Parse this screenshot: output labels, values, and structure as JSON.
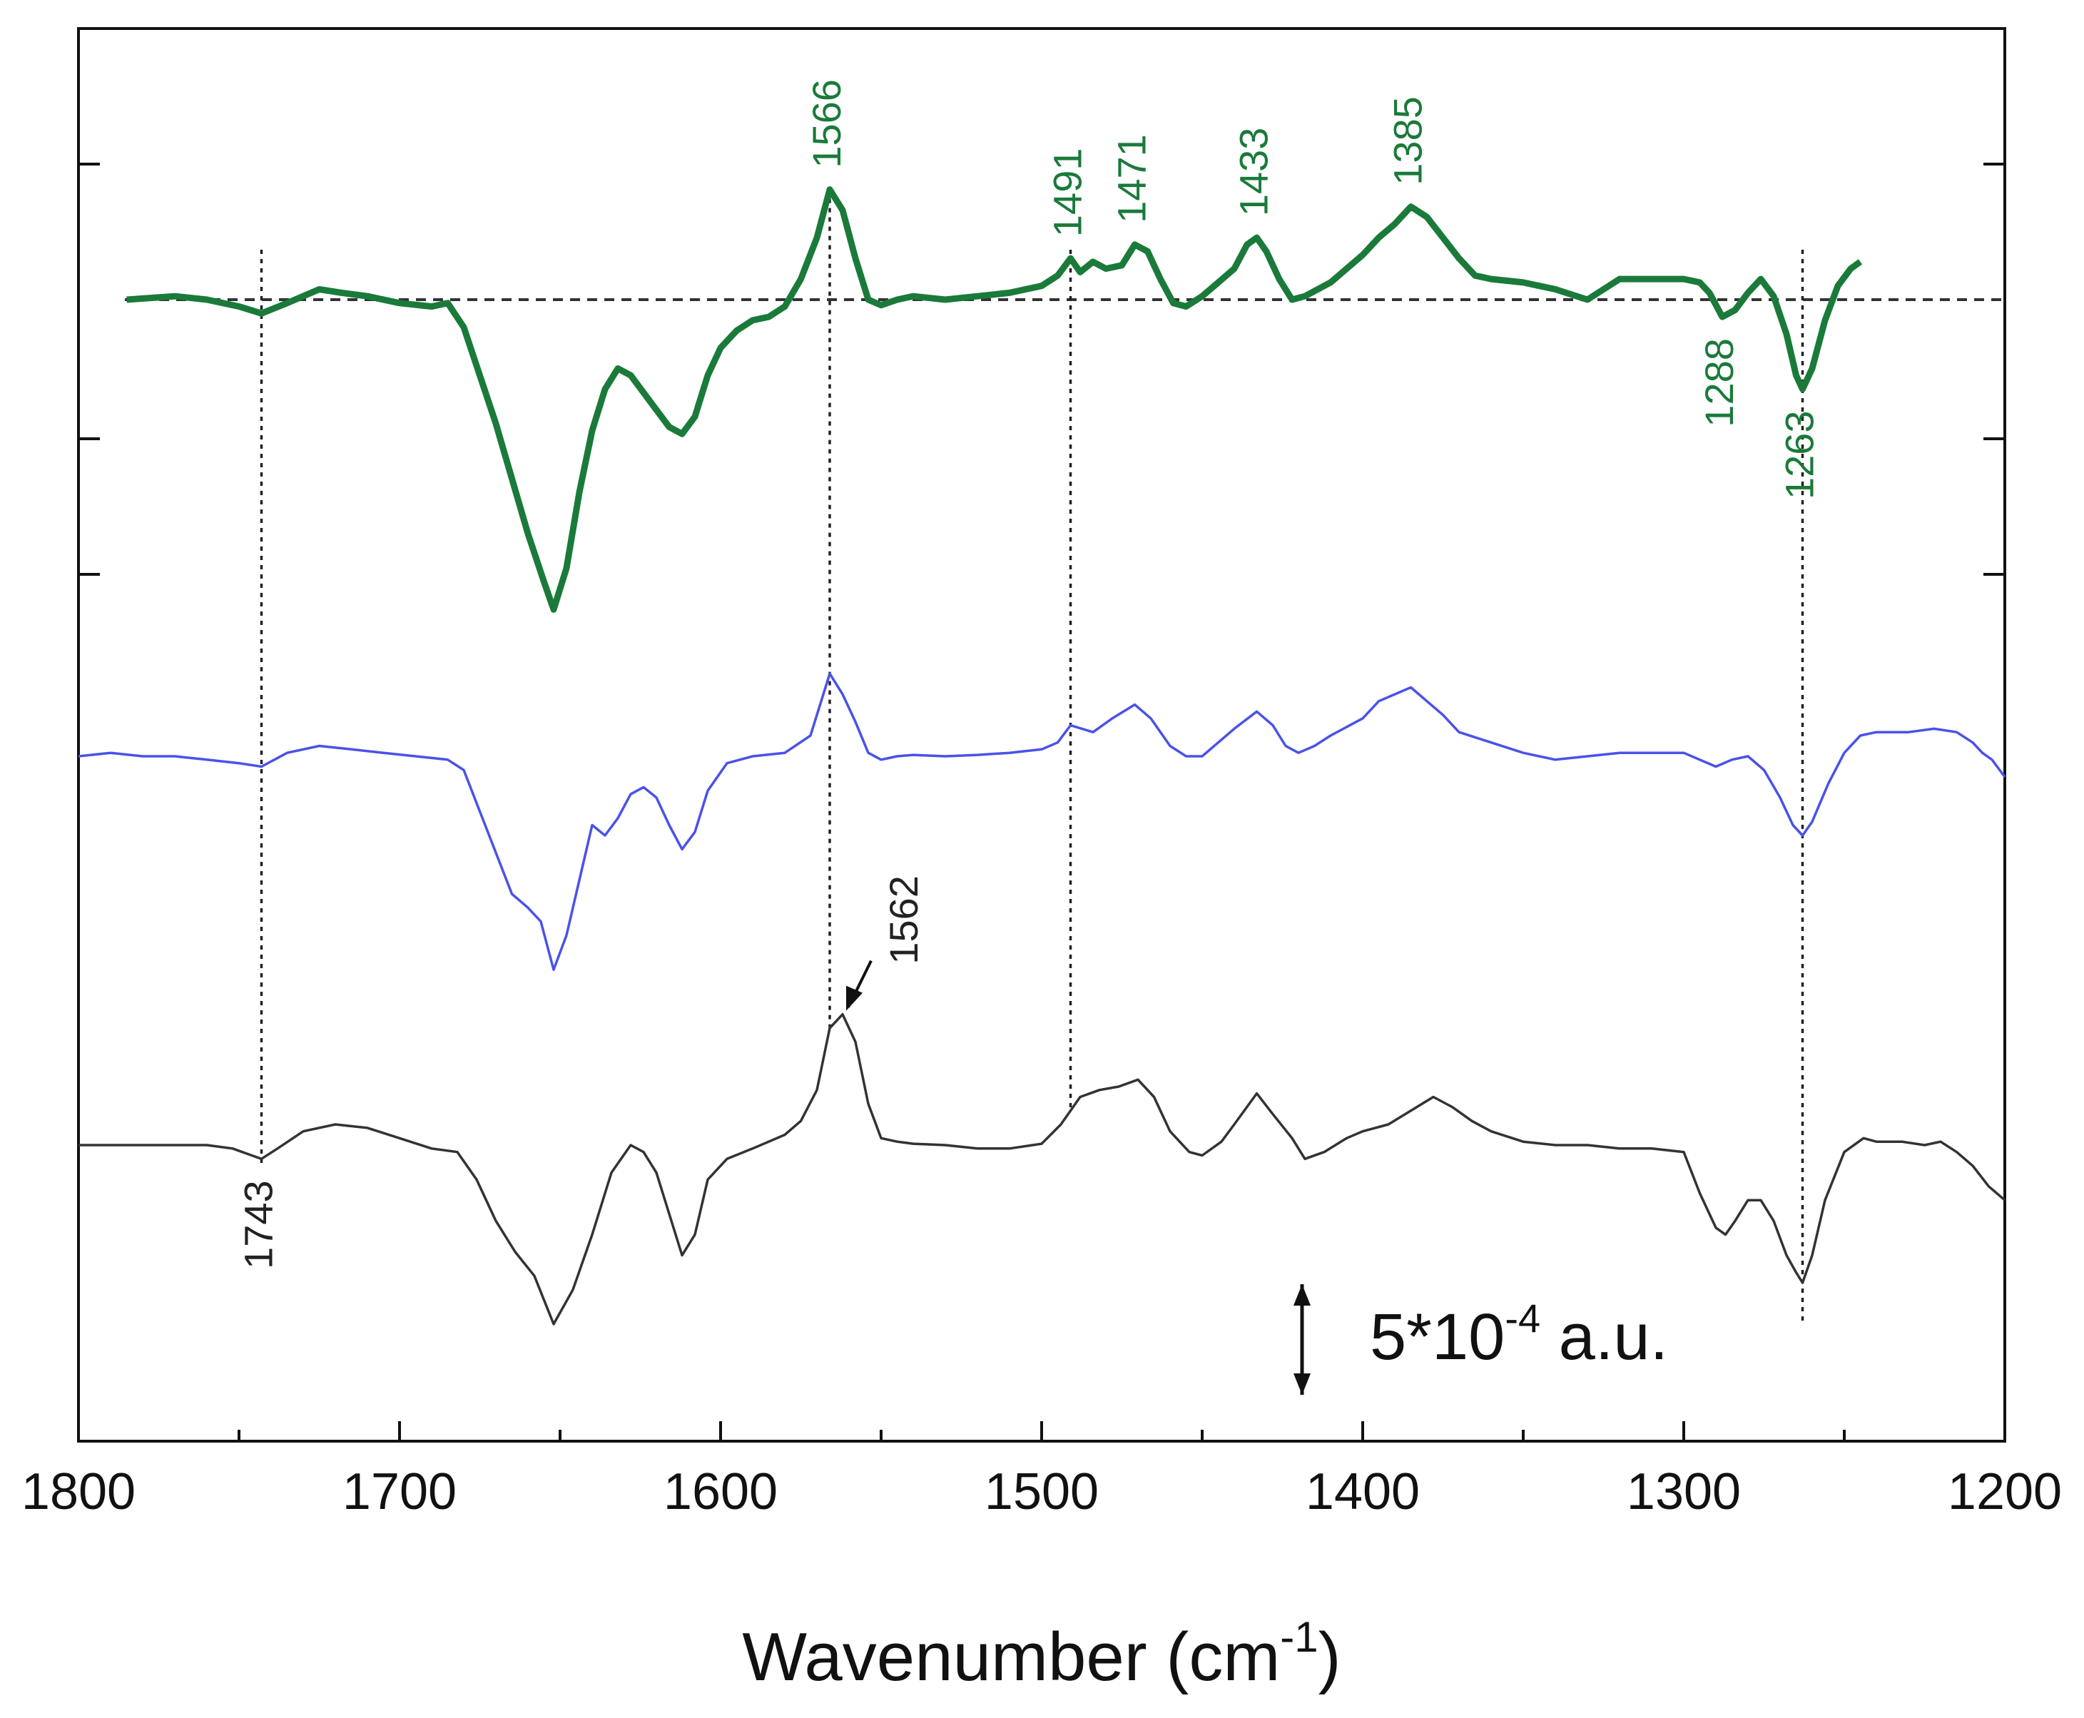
{
  "chart_data": {
    "type": "line",
    "title": "",
    "xlabel": "Wavenumber (cm",
    "xlabel_sup": "-1",
    "xlabel_tail": ")",
    "ylabel": "",
    "xlim": [
      1800,
      1200
    ],
    "x_reversed": true,
    "x_ticks": [
      1800,
      1700,
      1600,
      1500,
      1400,
      1300,
      1200
    ],
    "x_tick_labels": [
      "1800",
      "1700",
      "1600",
      "1500",
      "1400",
      "1300",
      "1200"
    ],
    "scale_bar": {
      "text": "5*10",
      "sup": "-4",
      "tail": " a.u.",
      "units_span": 0.0005
    },
    "series": [
      {
        "name": "top (green)",
        "color": "#1a7a3a",
        "baseline": 1.0,
        "x": [
          1785,
          1770,
          1760,
          1750,
          1743,
          1735,
          1725,
          1718,
          1710,
          1700,
          1690,
          1685,
          1680,
          1675,
          1670,
          1665,
          1660,
          1655,
          1652,
          1648,
          1644,
          1640,
          1636,
          1632,
          1628,
          1624,
          1620,
          1616,
          1612,
          1608,
          1604,
          1600,
          1595,
          1590,
          1585,
          1580,
          1575,
          1570,
          1566,
          1562,
          1558,
          1554,
          1550,
          1545,
          1540,
          1530,
          1520,
          1510,
          1500,
          1495,
          1491,
          1488,
          1484,
          1480,
          1475,
          1471,
          1467,
          1463,
          1459,
          1455,
          1450,
          1445,
          1440,
          1436,
          1433,
          1430,
          1426,
          1422,
          1418,
          1410,
          1400,
          1395,
          1390,
          1385,
          1380,
          1375,
          1370,
          1365,
          1360,
          1350,
          1340,
          1330,
          1320,
          1310,
          1300,
          1295,
          1292,
          1288,
          1284,
          1280,
          1276,
          1272,
          1268,
          1265,
          1263,
          1260,
          1256,
          1252,
          1248,
          1245
        ],
        "y": [
          0.0,
          0.05,
          0.0,
          -0.1,
          -0.2,
          -0.05,
          0.15,
          0.1,
          0.05,
          -0.05,
          -0.1,
          -0.05,
          -0.4,
          -1.1,
          -1.8,
          -2.6,
          -3.4,
          -4.1,
          -4.5,
          -3.9,
          -2.8,
          -1.9,
          -1.3,
          -1.0,
          -1.1,
          -1.35,
          -1.6,
          -1.85,
          -1.95,
          -1.7,
          -1.1,
          -0.7,
          -0.45,
          -0.3,
          -0.25,
          -0.1,
          0.3,
          0.9,
          1.6,
          1.3,
          0.6,
          0.0,
          -0.08,
          0.0,
          0.05,
          0.0,
          0.05,
          0.1,
          0.2,
          0.35,
          0.6,
          0.4,
          0.55,
          0.45,
          0.5,
          0.8,
          0.7,
          0.3,
          -0.05,
          -0.1,
          0.05,
          0.25,
          0.45,
          0.8,
          0.9,
          0.7,
          0.3,
          0.0,
          0.05,
          0.25,
          0.65,
          0.9,
          1.1,
          1.35,
          1.2,
          0.9,
          0.6,
          0.35,
          0.3,
          0.25,
          0.15,
          0.0,
          0.3,
          0.3,
          0.3,
          0.25,
          0.1,
          -0.25,
          -0.15,
          0.1,
          0.3,
          0.05,
          -0.5,
          -1.1,
          -1.3,
          -1.0,
          -0.3,
          0.2,
          0.45,
          0.55
        ]
      },
      {
        "name": "middle (blue)",
        "color": "#4a52e8",
        "baseline": 0.0,
        "x": [
          1800,
          1790,
          1780,
          1770,
          1760,
          1750,
          1743,
          1735,
          1725,
          1715,
          1705,
          1695,
          1685,
          1680,
          1675,
          1670,
          1665,
          1660,
          1656,
          1652,
          1648,
          1644,
          1640,
          1636,
          1632,
          1628,
          1624,
          1620,
          1616,
          1612,
          1608,
          1604,
          1598,
          1590,
          1580,
          1572,
          1566,
          1562,
          1558,
          1554,
          1550,
          1545,
          1540,
          1530,
          1520,
          1510,
          1500,
          1495,
          1491,
          1484,
          1478,
          1471,
          1466,
          1460,
          1455,
          1450,
          1445,
          1440,
          1433,
          1428,
          1424,
          1420,
          1415,
          1410,
          1400,
          1395,
          1390,
          1385,
          1380,
          1375,
          1370,
          1360,
          1350,
          1340,
          1320,
          1300,
          1290,
          1285,
          1280,
          1275,
          1270,
          1266,
          1263,
          1260,
          1255,
          1250,
          1245,
          1240,
          1230,
          1222,
          1215,
          1210,
          1207,
          1204,
          1200
        ],
        "y": [
          0.0,
          0.05,
          0.0,
          0.0,
          -0.05,
          -0.1,
          -0.15,
          0.05,
          0.15,
          0.1,
          0.05,
          0.0,
          -0.05,
          -0.2,
          -0.8,
          -1.4,
          -2.0,
          -2.2,
          -2.4,
          -3.1,
          -2.6,
          -1.8,
          -1.0,
          -1.15,
          -0.9,
          -0.55,
          -0.45,
          -0.6,
          -1.0,
          -1.35,
          -1.1,
          -0.5,
          -0.1,
          0.0,
          0.05,
          0.3,
          1.2,
          0.9,
          0.5,
          0.05,
          -0.05,
          0.0,
          0.02,
          0.0,
          0.02,
          0.05,
          0.1,
          0.2,
          0.45,
          0.35,
          0.55,
          0.75,
          0.55,
          0.15,
          0.0,
          0.0,
          0.2,
          0.4,
          0.65,
          0.45,
          0.15,
          0.05,
          0.15,
          0.3,
          0.55,
          0.8,
          0.9,
          1.0,
          0.8,
          0.6,
          0.35,
          0.2,
          0.05,
          -0.05,
          0.05,
          0.05,
          -0.15,
          -0.05,
          0.0,
          -0.2,
          -0.6,
          -1.0,
          -1.15,
          -0.95,
          -0.4,
          0.05,
          0.3,
          0.35,
          0.35,
          0.4,
          0.35,
          0.2,
          0.05,
          -0.05,
          -0.3
        ]
      },
      {
        "name": "bottom (black)",
        "color": "#333333",
        "baseline": -1.0,
        "x": [
          1800,
          1780,
          1760,
          1752,
          1746,
          1743,
          1738,
          1730,
          1720,
          1710,
          1700,
          1690,
          1682,
          1676,
          1670,
          1664,
          1658,
          1652,
          1646,
          1640,
          1634,
          1628,
          1624,
          1620,
          1616,
          1612,
          1608,
          1604,
          1598,
          1590,
          1580,
          1575,
          1570,
          1566,
          1562,
          1558,
          1554,
          1550,
          1545,
          1540,
          1530,
          1520,
          1510,
          1500,
          1494,
          1488,
          1482,
          1476,
          1470,
          1465,
          1460,
          1454,
          1450,
          1444,
          1440,
          1433,
          1428,
          1422,
          1418,
          1412,
          1405,
          1400,
          1392,
          1385,
          1378,
          1372,
          1366,
          1360,
          1350,
          1340,
          1330,
          1320,
          1310,
          1300,
          1295,
          1290,
          1287,
          1284,
          1280,
          1276,
          1272,
          1268,
          1265,
          1263,
          1260,
          1256,
          1250,
          1244,
          1240,
          1232,
          1225,
          1220,
          1215,
          1210,
          1205,
          1200
        ],
        "y": [
          0.0,
          0.0,
          0.0,
          -0.05,
          -0.15,
          -0.2,
          -0.05,
          0.2,
          0.3,
          0.25,
          0.1,
          -0.05,
          -0.1,
          -0.5,
          -1.1,
          -1.55,
          -1.9,
          -2.6,
          -2.1,
          -1.3,
          -0.4,
          0.0,
          -0.1,
          -0.4,
          -1.0,
          -1.6,
          -1.3,
          -0.5,
          -0.2,
          -0.05,
          0.15,
          0.35,
          0.8,
          1.7,
          1.9,
          1.5,
          0.6,
          0.1,
          0.05,
          0.02,
          0.0,
          -0.05,
          -0.05,
          0.02,
          0.3,
          0.7,
          0.8,
          0.85,
          0.95,
          0.7,
          0.2,
          -0.1,
          -0.15,
          0.05,
          0.3,
          0.75,
          0.45,
          0.1,
          -0.2,
          -0.1,
          0.1,
          0.2,
          0.3,
          0.5,
          0.7,
          0.55,
          0.35,
          0.2,
          0.05,
          0.0,
          0.0,
          -0.05,
          -0.05,
          -0.1,
          -0.7,
          -1.2,
          -1.3,
          -1.1,
          -0.8,
          -0.8,
          -1.1,
          -1.6,
          -1.85,
          -2.0,
          -1.6,
          -0.8,
          -0.1,
          0.1,
          0.05,
          0.05,
          0.0,
          0.05,
          -0.1,
          -0.3,
          -0.6,
          -0.8
        ]
      }
    ],
    "reference_lines": [
      {
        "x": 1743,
        "from": "top",
        "to": "bottom"
      },
      {
        "x": 1566,
        "from": "top",
        "to": "bottom"
      },
      {
        "x": 1491,
        "from": "top",
        "to": "bottom"
      },
      {
        "x": 1263,
        "from": "top",
        "to": "bottom"
      }
    ],
    "annotations": [
      {
        "text": "1566",
        "x": 1566,
        "series": 0,
        "side": "above",
        "color": "#1a7a3a"
      },
      {
        "text": "1491",
        "x": 1491,
        "series": 0,
        "side": "above",
        "color": "#1a7a3a"
      },
      {
        "text": "1471",
        "x": 1471,
        "series": 0,
        "side": "above",
        "color": "#1a7a3a"
      },
      {
        "text": "1433",
        "x": 1433,
        "series": 0,
        "side": "above",
        "color": "#1a7a3a"
      },
      {
        "text": "1385",
        "x": 1385,
        "series": 0,
        "side": "above",
        "color": "#1a7a3a"
      },
      {
        "text": "1288",
        "x": 1288,
        "series": 0,
        "side": "below",
        "color": "#1a7a3a"
      },
      {
        "text": "1263",
        "x": 1263,
        "series": 0,
        "side": "below",
        "color": "#1a7a3a"
      },
      {
        "text": "1562",
        "x": 1562,
        "series": 2,
        "side": "above",
        "color": "#222222",
        "arrow": true
      },
      {
        "text": "1743",
        "x": 1743,
        "series": 2,
        "side": "below",
        "color": "#222222"
      }
    ]
  }
}
